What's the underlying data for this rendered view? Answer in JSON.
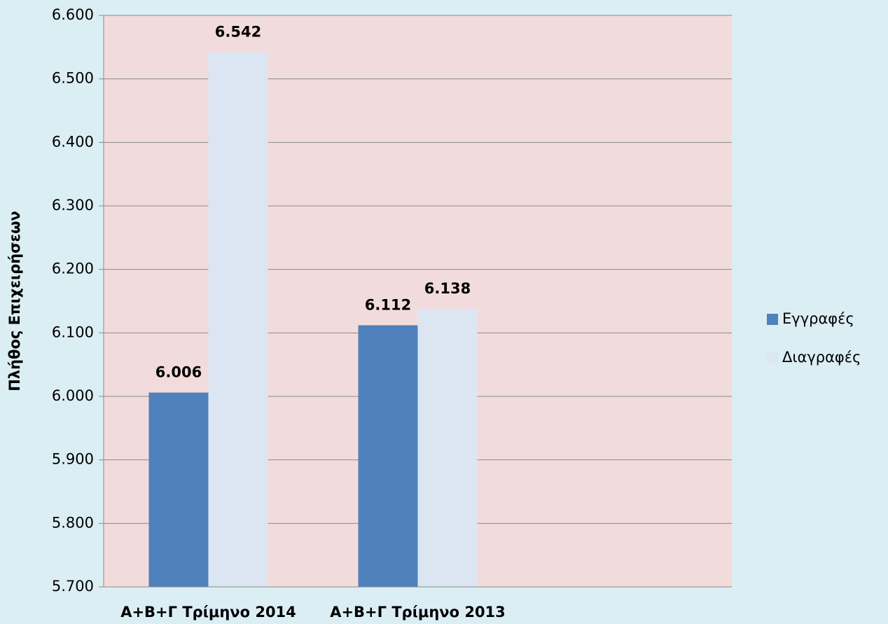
{
  "chart_data": {
    "type": "bar",
    "y_label": "Πλήθος Επιχειρήσεων",
    "categories": [
      "Α+Β+Γ Τρίμηνο 2014",
      "Α+Β+Γ Τρίμηνο 2013",
      null
    ],
    "series": [
      {
        "name": "Εγγραφές",
        "color": "#4f81bd",
        "values": [
          6006,
          6112,
          null
        ],
        "value_labels": [
          "6.006",
          "6.112",
          null
        ]
      },
      {
        "name": "Διαγραφές",
        "color": "#dce6f2",
        "values": [
          6542,
          6138,
          null
        ],
        "value_labels": [
          "6.542",
          "6.138",
          null
        ]
      }
    ],
    "ylim": [
      5700,
      6600
    ],
    "yticks": [
      {
        "value": 5700,
        "label": "5.700"
      },
      {
        "value": 5800,
        "label": "5.800"
      },
      {
        "value": 5900,
        "label": "5.900"
      },
      {
        "value": 6000,
        "label": "6.000"
      },
      {
        "value": 6100,
        "label": "6.100"
      },
      {
        "value": 6200,
        "label": "6.200"
      },
      {
        "value": 6300,
        "label": "6.300"
      },
      {
        "value": 6400,
        "label": "6.400"
      },
      {
        "value": 6500,
        "label": "6.500"
      },
      {
        "value": 6600,
        "label": "6.600"
      }
    ],
    "grid": true,
    "legend": "right",
    "plot_background": "#f2dcdb"
  }
}
